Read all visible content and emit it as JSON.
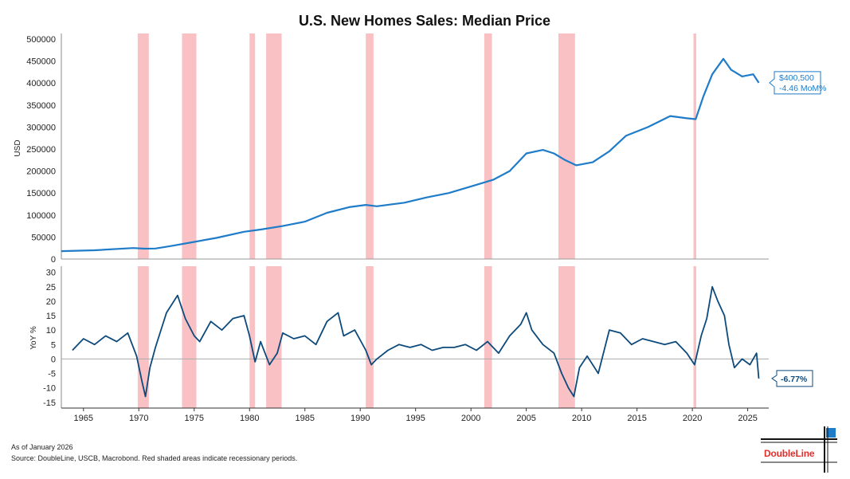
{
  "chart_data": [
    {
      "type": "line",
      "title": "U.S. New Homes Sales: Median Price",
      "ylabel": "USD",
      "ylim": [
        0,
        500000
      ],
      "yticks": [
        0,
        50000,
        100000,
        150000,
        200000,
        250000,
        300000,
        350000,
        400000,
        450000,
        500000
      ],
      "ytick_labels": [
        "0",
        "50000",
        "100000",
        "150000",
        "200000",
        "250000",
        "300000",
        "350000",
        "400000",
        "450000",
        "500000"
      ],
      "color": "#1f7cc9",
      "series": [
        {
          "name": "Median Price",
          "x": [
            1963.0,
            1966.0,
            1969.5,
            1970.5,
            1971.5,
            1973.0,
            1975.0,
            1977.0,
            1979.5,
            1981.0,
            1983.0,
            1985.0,
            1987.0,
            1989.0,
            1990.5,
            1991.5,
            1994.0,
            1996.0,
            1998.0,
            2000.0,
            2002.0,
            2003.5,
            2005.0,
            2006.5,
            2007.5,
            2008.5,
            2009.5,
            2011.0,
            2012.5,
            2014.0,
            2016.0,
            2018.0,
            2019.5,
            2020.3,
            2021.0,
            2021.8,
            2022.8,
            2023.5,
            2024.5,
            2025.5,
            2026.0
          ],
          "values": [
            18000,
            20000,
            25000,
            23500,
            24000,
            30000,
            39000,
            48000,
            62000,
            67000,
            75000,
            85000,
            105000,
            118000,
            123000,
            120000,
            128000,
            140000,
            150000,
            165000,
            180000,
            200000,
            240000,
            248000,
            240000,
            225000,
            213000,
            220000,
            245000,
            280000,
            300000,
            325000,
            320000,
            318000,
            370000,
            420000,
            455000,
            430000,
            415000,
            420000,
            400500
          ]
        }
      ],
      "callout": {
        "value": "$400,500",
        "change": "-4.46 MoM%"
      }
    },
    {
      "type": "line",
      "ylabel": "YoY %",
      "ylim": [
        -17,
        31
      ],
      "yticks": [
        -15,
        -10,
        -5,
        0,
        5,
        10,
        15,
        20,
        25,
        30
      ],
      "ytick_labels": [
        "-15",
        "-10",
        "-5",
        "0",
        "5",
        "10",
        "15",
        "20",
        "25",
        "30"
      ],
      "xlim": [
        1963.0,
        2026.9
      ],
      "xticks": [
        1965,
        1970,
        1975,
        1980,
        1985,
        1990,
        1995,
        2000,
        2005,
        2010,
        2015,
        2020,
        2025
      ],
      "xtick_labels": [
        "1965",
        "1970",
        "1975",
        "1980",
        "1985",
        "1990",
        "1995",
        "2000",
        "2005",
        "2010",
        "2015",
        "2020",
        "2025"
      ],
      "color": "#0d4a7c",
      "series": [
        {
          "name": "YoY %",
          "x": [
            1964.0,
            1965.0,
            1966.0,
            1967.0,
            1968.0,
            1969.0,
            1969.8,
            1970.3,
            1970.6,
            1971.0,
            1971.5,
            1972.5,
            1973.5,
            1974.2,
            1975.0,
            1975.5,
            1976.5,
            1977.5,
            1978.5,
            1979.5,
            1980.0,
            1980.5,
            1981.0,
            1981.8,
            1982.5,
            1983.0,
            1984.0,
            1985.0,
            1986.0,
            1987.0,
            1988.0,
            1988.5,
            1989.5,
            1990.5,
            1991.0,
            1991.5,
            1992.5,
            1993.5,
            1994.5,
            1995.5,
            1996.5,
            1997.5,
            1998.5,
            1999.5,
            2000.5,
            2001.5,
            2002.5,
            2003.5,
            2004.5,
            2005.0,
            2005.5,
            2006.5,
            2007.5,
            2008.2,
            2008.8,
            2009.3,
            2009.8,
            2010.5,
            2011.5,
            2012.5,
            2013.5,
            2014.5,
            2015.5,
            2016.5,
            2017.5,
            2018.5,
            2019.5,
            2020.2,
            2020.8,
            2021.3,
            2021.8,
            2022.3,
            2022.9,
            2023.3,
            2023.8,
            2024.5,
            2025.2,
            2025.8,
            2026.0
          ],
          "values": [
            3,
            7,
            5,
            8,
            6,
            9,
            1,
            -8,
            -13,
            -3,
            4,
            16,
            22,
            14,
            8,
            6,
            13,
            10,
            14,
            15,
            8,
            -1,
            6,
            -2,
            2,
            9,
            7,
            8,
            5,
            13,
            16,
            8,
            10,
            3,
            -2,
            0,
            3,
            5,
            4,
            5,
            3,
            4,
            4,
            5,
            3,
            6,
            2,
            8,
            12,
            16,
            10,
            5,
            2,
            -5,
            -10,
            -13,
            -3,
            1,
            -5,
            10,
            9,
            5,
            7,
            6,
            5,
            6,
            2,
            -2,
            8,
            14,
            25,
            20,
            15,
            5,
            -3,
            0,
            -2,
            2,
            -6.77
          ]
        }
      ],
      "callout": {
        "value": "-6.77%"
      }
    }
  ],
  "recessions": [
    {
      "start": 1969.9,
      "end": 1970.9
    },
    {
      "start": 1973.9,
      "end": 1975.2
    },
    {
      "start": 1980.0,
      "end": 1980.5
    },
    {
      "start": 1981.5,
      "end": 1982.9
    },
    {
      "start": 1990.5,
      "end": 1991.2
    },
    {
      "start": 2001.2,
      "end": 2001.9
    },
    {
      "start": 2007.9,
      "end": 2009.4
    },
    {
      "start": 2020.1,
      "end": 2020.35
    }
  ],
  "recession_color": "#f9c1c4",
  "footer": {
    "as_of": "As of January 2026",
    "source": "Source: DoubleLine, USCB, Macrobond. Red shaded areas indicate recessionary periods."
  },
  "logo": {
    "text": "DoubleLine"
  }
}
